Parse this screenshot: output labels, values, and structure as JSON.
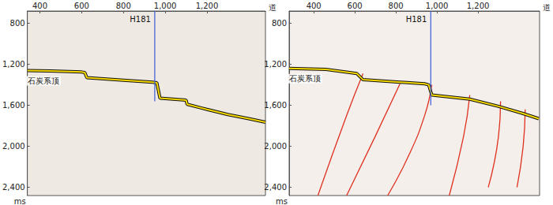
{
  "chart_data": [
    {
      "type": "line",
      "x_label": "道",
      "y_label": "ms",
      "xlim": [
        340,
        1480
      ],
      "ylim": [
        680,
        2480
      ],
      "xticks": [
        400,
        600,
        800,
        1000,
        1200
      ],
      "yticks": [
        800,
        1200,
        1600,
        2000,
        2400
      ],
      "horizons": [
        {
          "label": "石炭系顶",
          "color": "#f5d800",
          "x": [
            341,
            450,
            600,
            615,
            625,
            800,
            940,
            960,
            975,
            1100,
            1105,
            1200,
            1300,
            1400,
            1480
          ],
          "values": [
            1260,
            1265,
            1275,
            1280,
            1330,
            1355,
            1375,
            1380,
            1530,
            1550,
            1590,
            1640,
            1690,
            1730,
            1765
          ]
        }
      ],
      "wells": [
        {
          "label": "H181",
          "color": "#3b5bd6",
          "x": 950,
          "range": [
            680,
            1560
          ]
        }
      ],
      "faults": []
    },
    {
      "type": "line",
      "x_label": "道",
      "y_label": "ms",
      "xlim": [
        280,
        1500
      ],
      "ylim": [
        680,
        2480
      ],
      "xticks": [
        400,
        600,
        800,
        1000,
        1200
      ],
      "yticks": [
        800,
        1200,
        1600,
        2000,
        2400
      ],
      "horizons": [
        {
          "label": "石炭系顶",
          "color": "#f5d800",
          "x": [
            280,
            460,
            610,
            640,
            940,
            960,
            975,
            1160,
            1300,
            1420,
            1496
          ],
          "values": [
            1240,
            1250,
            1290,
            1350,
            1390,
            1400,
            1500,
            1540,
            1610,
            1680,
            1730
          ]
        }
      ],
      "wells": [
        {
          "label": "H181",
          "color": "#3b5bd6",
          "x": 970,
          "range": [
            680,
            1600
          ]
        }
      ],
      "faults": [
        {
          "color": "#e03020",
          "x": [
            640,
            560,
            420
          ],
          "values": [
            1290,
            1700,
            2480
          ]
        },
        {
          "color": "#e03020",
          "x": [
            820,
            700,
            560
          ],
          "values": [
            1390,
            1900,
            2480
          ]
        },
        {
          "color": "#e03020",
          "x": [
            975,
            940,
            860,
            760
          ],
          "values": [
            1400,
            1700,
            2100,
            2480
          ]
        },
        {
          "color": "#e03020",
          "x": [
            1160,
            1130,
            1060
          ],
          "values": [
            1500,
            1900,
            2480
          ]
        },
        {
          "color": "#e03020",
          "x": [
            1310,
            1300,
            1250
          ],
          "values": [
            1560,
            1900,
            2400
          ]
        },
        {
          "color": "#e03020",
          "x": [
            1430,
            1420,
            1390
          ],
          "values": [
            1640,
            2000,
            2400
          ]
        }
      ]
    }
  ]
}
